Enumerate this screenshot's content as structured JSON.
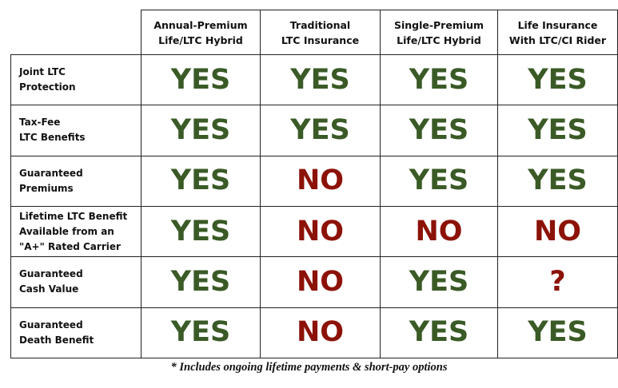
{
  "table": {
    "columns": [
      "Annual-Premium\nLife/LTC Hybrid",
      "Traditional\nLTC Insurance",
      "Single-Premium\nLife/LTC Hybrid",
      "Life Insurance\nWith LTC/CI Rider"
    ],
    "rows": [
      {
        "label": "Joint LTC\nProtection",
        "values": [
          "YES",
          "YES",
          "YES",
          "YES"
        ]
      },
      {
        "label": "Tax-Fee\nLTC Benefits",
        "values": [
          "YES",
          "YES",
          "YES",
          "YES"
        ]
      },
      {
        "label": "Guaranteed\nPremiums",
        "values": [
          "YES",
          "NO",
          "YES",
          "YES"
        ]
      },
      {
        "label": "Lifetime LTC Benefit\nAvailable from an\n\"A+\" Rated Carrier",
        "values": [
          "YES",
          "NO",
          "NO",
          "NO"
        ]
      },
      {
        "label": "Guaranteed\nCash Value",
        "values": [
          "YES",
          "NO",
          "YES",
          "?"
        ]
      },
      {
        "label": "Guaranteed\nDeath Benefit",
        "values": [
          "YES",
          "NO",
          "YES",
          "YES"
        ]
      }
    ]
  },
  "colors": {
    "yes": "#3a5a26",
    "no": "#8c1208"
  },
  "footnote": "* Includes ongoing lifetime payments & short-pay options"
}
